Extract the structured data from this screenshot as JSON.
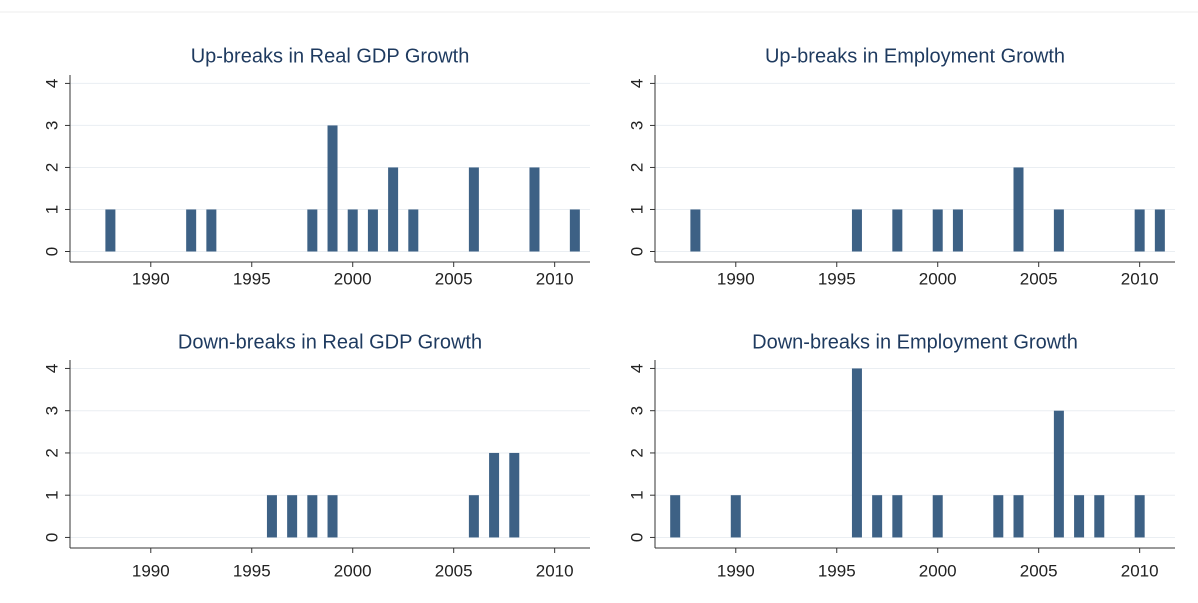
{
  "chart_data": [
    {
      "type": "bar",
      "title": "Up-breaks in Real GDP Growth",
      "color": "#3d6185",
      "grid": true,
      "x": [
        1988,
        1992,
        1993,
        1998,
        1999,
        2000,
        2001,
        2002,
        2003,
        2006,
        2009,
        2011
      ],
      "values": [
        1,
        1,
        1,
        1,
        3,
        1,
        1,
        2,
        1,
        2,
        2,
        1
      ],
      "xlim": [
        1986,
        2011.75
      ],
      "xticks": [
        1990,
        1995,
        2000,
        2005,
        2010
      ],
      "ylim": [
        -0.25,
        4.2
      ],
      "yticks": [
        0,
        1,
        2,
        3,
        4
      ]
    },
    {
      "type": "bar",
      "title": "Up-breaks in Employment Growth",
      "color": "#3d6185",
      "grid": true,
      "x": [
        1988,
        1996,
        1998,
        2000,
        2001,
        2004,
        2006,
        2010,
        2011
      ],
      "values": [
        1,
        1,
        1,
        1,
        1,
        2,
        1,
        1,
        1
      ],
      "xlim": [
        1986,
        2011.75
      ],
      "xticks": [
        1990,
        1995,
        2000,
        2005,
        2010
      ],
      "ylim": [
        -0.25,
        4.2
      ],
      "yticks": [
        0,
        1,
        2,
        3,
        4
      ]
    },
    {
      "type": "bar",
      "title": "Down-breaks in Real GDP Growth",
      "color": "#3d6185",
      "grid": true,
      "x": [
        1996,
        1997,
        1998,
        1999,
        2006,
        2007,
        2008
      ],
      "values": [
        1,
        1,
        1,
        1,
        1,
        2,
        2
      ],
      "xlim": [
        1986,
        2011.75
      ],
      "xticks": [
        1990,
        1995,
        2000,
        2005,
        2010
      ],
      "ylim": [
        -0.25,
        4.2
      ],
      "yticks": [
        0,
        1,
        2,
        3,
        4
      ]
    },
    {
      "type": "bar",
      "title": "Down-breaks in Employment Growth",
      "color": "#3d6185",
      "grid": true,
      "x": [
        1987,
        1990,
        1996,
        1997,
        1998,
        2000,
        2003,
        2004,
        2006,
        2007,
        2008,
        2010
      ],
      "values": [
        1,
        1,
        4,
        1,
        1,
        1,
        1,
        1,
        3,
        1,
        1,
        1
      ],
      "xlim": [
        1986,
        2011.75
      ],
      "xticks": [
        1990,
        1995,
        2000,
        2005,
        2010
      ],
      "ylim": [
        -0.25,
        4.2
      ],
      "yticks": [
        0,
        1,
        2,
        3,
        4
      ]
    }
  ]
}
